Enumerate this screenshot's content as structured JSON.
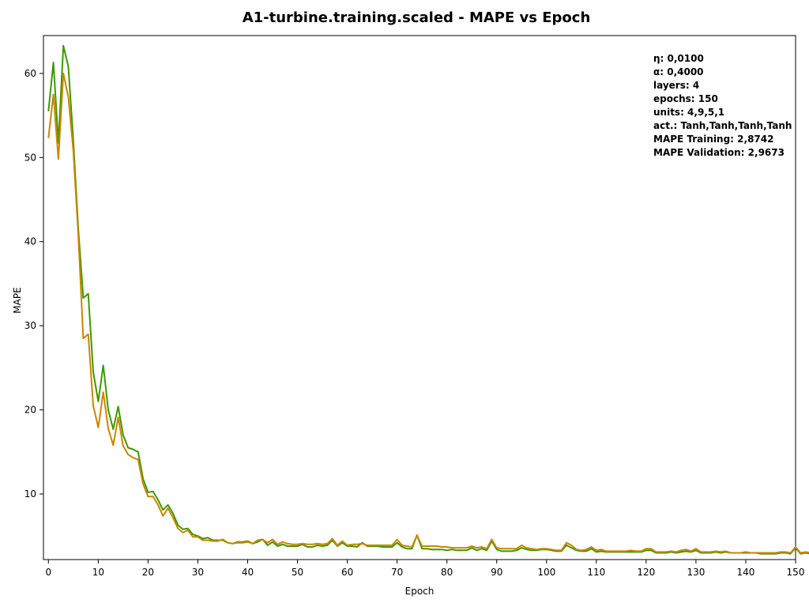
{
  "chart_data": {
    "type": "line",
    "title": "A1-turbine.training.scaled - MAPE vs Epoch",
    "xlabel": "Epoch",
    "ylabel": "MAPE",
    "xlim": [
      -1,
      150
    ],
    "ylim": [
      2.2,
      64.5
    ],
    "x_ticks": [
      0,
      10,
      20,
      30,
      40,
      50,
      60,
      70,
      80,
      90,
      100,
      110,
      120,
      130,
      140,
      150
    ],
    "y_ticks": [
      10,
      20,
      30,
      40,
      50,
      60
    ],
    "grid": false,
    "legend": "none",
    "info_lines": [
      "η: 0,0100",
      "α: 0,4000",
      "layers: 4",
      "epochs: 150",
      "units: 4,9,5,1",
      "act.: Tanh,Tanh,Tanh,Tanh",
      "MAPE Training: 2,8742",
      "MAPE Validation: 2,9673"
    ],
    "series": [
      {
        "color": "#3c9a00",
        "values": [
          55.5,
          61.3,
          51.7,
          63.3,
          60.8,
          52,
          41.5,
          33.3,
          33.8,
          24.5,
          21,
          25.3,
          20,
          17.7,
          20.4,
          17,
          15.5,
          15.3,
          15,
          11.8,
          10.2,
          10.3,
          9.3,
          8.1,
          8.7,
          7.7,
          6.3,
          5.8,
          5.9,
          5.2,
          5,
          4.7,
          4.8,
          4.5,
          4.5,
          4.5,
          4.2,
          4.1,
          4.3,
          4.3,
          4.4,
          4.1,
          4.3,
          4.6,
          3.9,
          4.3,
          3.8,
          4,
          3.8,
          3.8,
          3.8,
          4,
          3.7,
          3.7,
          3.9,
          3.8,
          3.9,
          4.5,
          3.8,
          4.2,
          3.8,
          3.8,
          3.7,
          4.2,
          3.8,
          3.8,
          3.8,
          3.7,
          3.7,
          3.7,
          4.2,
          3.7,
          3.5,
          3.5,
          5.1,
          3.5,
          3.5,
          3.4,
          3.4,
          3.4,
          3.3,
          3.4,
          3.3,
          3.3,
          3.3,
          3.6,
          3.3,
          3.5,
          3.3,
          4.4,
          3.4,
          3.2,
          3.2,
          3.2,
          3.3,
          3.6,
          3.4,
          3.3,
          3.3,
          3.4,
          3.4,
          3.3,
          3.2,
          3.2,
          3.9,
          3.6,
          3.3,
          3.2,
          3.2,
          3.5,
          3.1,
          3.2,
          3.1,
          3.1,
          3.1,
          3.1,
          3.1,
          3.1,
          3.1,
          3.1,
          3.3,
          3.3,
          3,
          3,
          3,
          3.1,
          3,
          3.1,
          3.2,
          3.1,
          3.3,
          3,
          3,
          3,
          3.1,
          3,
          3.1,
          3,
          3,
          3,
          3,
          3,
          3,
          2.9,
          2.9,
          2.9,
          2.9,
          3,
          3,
          2.9,
          3.6,
          2.9,
          3,
          2.9,
          2.9,
          2.87
        ]
      },
      {
        "color": "#cc8500",
        "values": [
          52.3,
          57.5,
          49.8,
          60,
          57.2,
          50.8,
          40.8,
          28.5,
          29,
          20.5,
          17.9,
          22.1,
          17.8,
          15.8,
          19.1,
          15.7,
          14.7,
          14.3,
          14.1,
          11.2,
          9.7,
          9.7,
          8.7,
          7.4,
          8.3,
          7.2,
          5.9,
          5.4,
          5.7,
          4.9,
          4.9,
          4.5,
          4.5,
          4.4,
          4.4,
          4.6,
          4.2,
          4.1,
          4.2,
          4.2,
          4.3,
          4.1,
          4.5,
          4.6,
          4.2,
          4.6,
          4,
          4.3,
          4.1,
          4,
          4,
          4.1,
          4,
          4,
          4.1,
          4,
          4.1,
          4.7,
          3.9,
          4.4,
          3.9,
          4,
          4,
          4.1,
          3.9,
          3.9,
          3.9,
          3.9,
          3.9,
          3.9,
          4.6,
          3.9,
          3.8,
          3.7,
          5.1,
          3.8,
          3.8,
          3.8,
          3.8,
          3.7,
          3.7,
          3.6,
          3.6,
          3.6,
          3.6,
          3.8,
          3.6,
          3.7,
          3.5,
          4.6,
          3.6,
          3.5,
          3.5,
          3.5,
          3.5,
          3.9,
          3.6,
          3.5,
          3.4,
          3.5,
          3.5,
          3.4,
          3.3,
          3.3,
          4.2,
          3.9,
          3.4,
          3.3,
          3.4,
          3.7,
          3.3,
          3.4,
          3.2,
          3.2,
          3.2,
          3.2,
          3.2,
          3.3,
          3.2,
          3.2,
          3.5,
          3.5,
          3.1,
          3.1,
          3.1,
          3.2,
          3.1,
          3.3,
          3.4,
          3.2,
          3.5,
          3.1,
          3.1,
          3.1,
          3.2,
          3.1,
          3.2,
          3,
          3,
          3,
          3.1,
          3,
          3,
          3,
          3,
          3,
          3,
          3.1,
          3.1,
          3,
          3.7,
          3,
          3.1,
          3,
          3,
          2.97
        ]
      }
    ]
  }
}
